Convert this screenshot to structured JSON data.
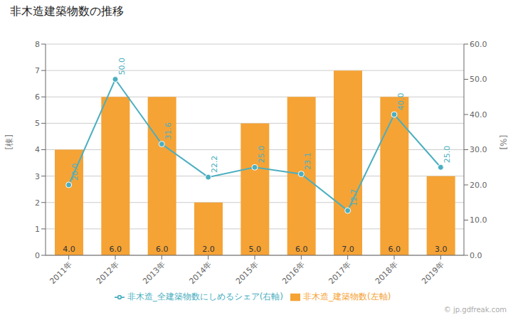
{
  "chart_data": {
    "type": "bar",
    "title": "非木造建築物数の推移",
    "categories": [
      "2011年",
      "2012年",
      "2013年",
      "2014年",
      "2015年",
      "2016年",
      "2017年",
      "2018年",
      "2019年"
    ],
    "series": [
      {
        "name": "非木造_建築物数(左軸)",
        "type": "bar",
        "color": "#F5A335",
        "values": [
          4.0,
          6.0,
          6.0,
          2.0,
          5.0,
          6.0,
          7.0,
          6.0,
          3.0
        ],
        "value_labels": [
          "4.0",
          "6.0",
          "6.0",
          "2.0",
          "5.0",
          "6.0",
          "7.0",
          "6.0",
          "3.0"
        ]
      },
      {
        "name": "非木造_全建築物数にしめるシェア(右軸)",
        "type": "line",
        "axis": "y2",
        "color": "#4BAFC0",
        "marker": "circle",
        "values": [
          20.0,
          50.0,
          31.6,
          22.2,
          25.0,
          23.1,
          12.7,
          40.0,
          25.0
        ],
        "value_labels": [
          "20.0",
          "50.0",
          "31.6",
          "22.2",
          "25.0",
          "23.1",
          "12.7",
          "40.0",
          "25.0"
        ]
      }
    ],
    "ylabel": "[棟]",
    "y2label": "[%]",
    "ylim": [
      0,
      8
    ],
    "yticks": [
      0,
      1,
      2,
      3,
      4,
      5,
      6,
      7,
      8
    ],
    "y2lim": [
      0.0,
      60.0
    ],
    "y2ticks": [
      {
        "value": 0,
        "label": "0.0"
      },
      {
        "value": 10,
        "label": "10.0"
      },
      {
        "value": 20,
        "label": "20.0"
      },
      {
        "value": 30,
        "label": "30.0"
      },
      {
        "value": 40,
        "label": "40.0"
      },
      {
        "value": 50,
        "label": "50.0"
      },
      {
        "value": 60,
        "label": "60.0"
      }
    ],
    "grid": true,
    "data_labels": true,
    "legend": "bottom",
    "annotations": [
      "© jp.gdfreak.com"
    ]
  }
}
